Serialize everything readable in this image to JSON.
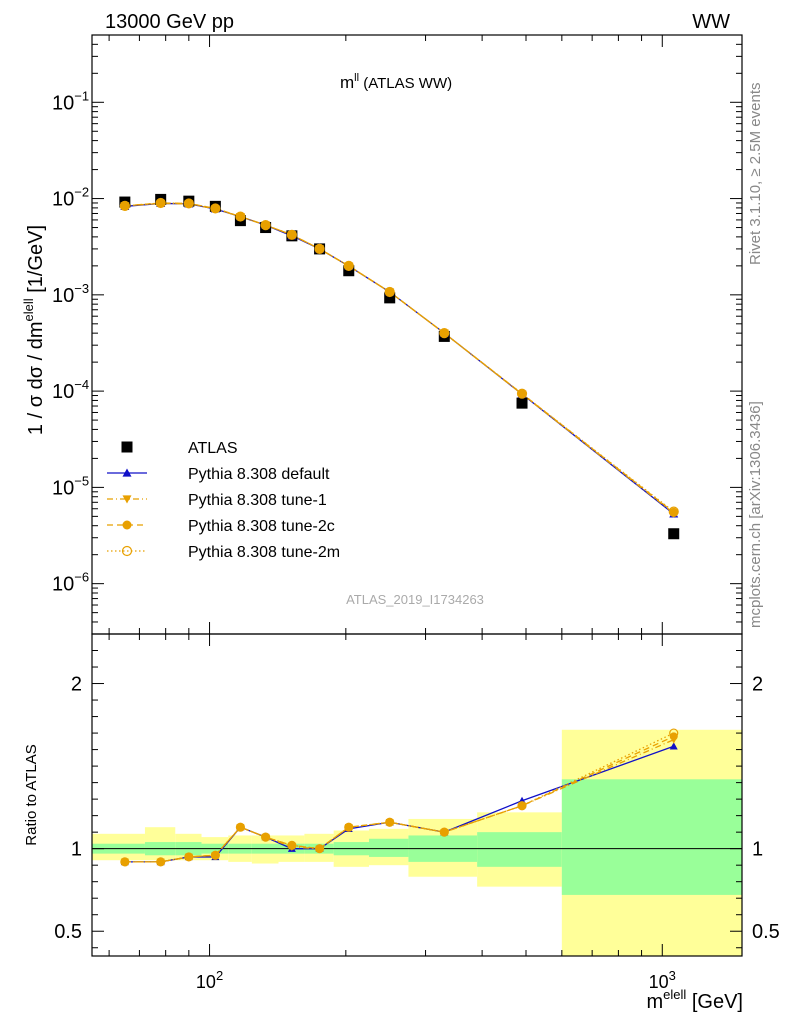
{
  "header": {
    "left": "13000 GeV pp",
    "right": "WW"
  },
  "side_labels": {
    "rivet": "Rivet 3.1.10, ≥ 2.5M events",
    "mcplots": "mcplots.cern.ch [arXiv:1306.3436]"
  },
  "watermark": "ATLAS_2019_I1734263",
  "colors": {
    "data": "#000000",
    "default": "#1010c8",
    "tunes": "#e8a000",
    "band_inner": "#99ff99",
    "band_outer": "#ffff99"
  },
  "chart_data": [
    {
      "type": "line",
      "panel": "main",
      "title": "m^{ll} (ATLAS WW)",
      "title_main": "m",
      "title_sup": "ll",
      "title_rest": " (ATLAS WW)",
      "ylabel": "1 / σ  dσ / dm^{elell} [1/GeV]",
      "ylabel_parts": {
        "pre": "1 / σ  dσ / dm",
        "sup": "elell",
        "post": " [1/GeV]"
      },
      "xscale": "log",
      "yscale": "log",
      "xlim": [
        55,
        1500
      ],
      "ylim": [
        3e-07,
        0.5
      ],
      "yticks": [
        {
          "value": 1e-06,
          "base": "10",
          "exp": "−6"
        },
        {
          "value": 1e-05,
          "base": "10",
          "exp": "−5"
        },
        {
          "value": 0.0001,
          "base": "10",
          "exp": "−4"
        },
        {
          "value": 0.001,
          "base": "10",
          "exp": "−3"
        },
        {
          "value": 0.01,
          "base": "10",
          "exp": "−2"
        },
        {
          "value": 0.1,
          "base": "10",
          "exp": "−1"
        }
      ],
      "legend_position": "bottom-left",
      "x": [
        65,
        78,
        90,
        103,
        117,
        133,
        152,
        175,
        203,
        250,
        330,
        490,
        1060
      ],
      "series": [
        {
          "name": "ATLAS",
          "marker": "square",
          "values": [
            0.0092,
            0.0098,
            0.0094,
            0.0083,
            0.0059,
            0.005,
            0.0041,
            0.003,
            0.00178,
            0.00093,
            0.00037,
            7.5e-05,
            3.3e-06
          ]
        },
        {
          "name": "Pythia 8.308 default",
          "marker": "triangle-up",
          "line": "solid",
          "values": [
            0.0083,
            0.0089,
            0.0088,
            0.0078,
            0.0065,
            0.0053,
            0.0041,
            0.003,
            0.00199,
            0.00107,
            0.0004,
            9.3e-05,
            5.3e-06
          ]
        },
        {
          "name": "Pythia 8.308 tune-1",
          "marker": "triangle-down",
          "line": "dashdot",
          "values": [
            0.0084,
            0.0089,
            0.0088,
            0.0078,
            0.0065,
            0.0053,
            0.0042,
            0.003,
            0.00199,
            0.00107,
            0.0004,
            9.3e-05,
            5.4e-06
          ]
        },
        {
          "name": "Pythia 8.308 tune-2c",
          "marker": "circle",
          "line": "dashed",
          "values": [
            0.0084,
            0.009,
            0.0089,
            0.0079,
            0.0065,
            0.0053,
            0.0042,
            0.003,
            0.002,
            0.00107,
            0.0004,
            9.4e-05,
            5.5e-06
          ]
        },
        {
          "name": "Pythia 8.308 tune-2m",
          "marker": "circle-open",
          "line": "dotted",
          "values": [
            0.0084,
            0.009,
            0.0089,
            0.0079,
            0.0065,
            0.0053,
            0.0042,
            0.003,
            0.002,
            0.00107,
            0.0004,
            9.4e-05,
            5.6e-06
          ]
        }
      ]
    },
    {
      "type": "line",
      "panel": "ratio",
      "ylabel": "Ratio to ATLAS",
      "xlabel": "m^{elell} [GeV]",
      "xlabel_parts": {
        "pre": "m",
        "sup": "elell",
        "post": " [GeV]"
      },
      "xscale": "log",
      "xlim": [
        55,
        1500
      ],
      "ylim": [
        0.35,
        2.3
      ],
      "yticks": [
        0.5,
        1,
        2
      ],
      "xticks": [
        {
          "value": 100,
          "base": "10",
          "exp": "2"
        },
        {
          "value": 1000,
          "base": "10",
          "exp": "3"
        }
      ],
      "bin_edges": [
        55,
        72,
        84,
        96,
        110,
        124,
        142,
        162,
        188,
        225,
        275,
        390,
        600,
        1500
      ],
      "band_inner": [
        [
          0.97,
          1.03
        ],
        [
          0.96,
          1.04
        ],
        [
          0.96,
          1.04
        ],
        [
          0.97,
          1.03
        ],
        [
          0.97,
          1.03
        ],
        [
          0.97,
          1.03
        ],
        [
          0.97,
          1.03
        ],
        [
          0.97,
          1.03
        ],
        [
          0.96,
          1.04
        ],
        [
          0.95,
          1.06
        ],
        [
          0.92,
          1.08
        ],
        [
          0.89,
          1.1
        ],
        [
          0.72,
          1.42
        ]
      ],
      "band_outer": [
        [
          0.93,
          1.09
        ],
        [
          0.93,
          1.13
        ],
        [
          0.93,
          1.09
        ],
        [
          0.93,
          1.07
        ],
        [
          0.92,
          1.08
        ],
        [
          0.91,
          1.08
        ],
        [
          0.92,
          1.08
        ],
        [
          0.92,
          1.09
        ],
        [
          0.89,
          1.11
        ],
        [
          0.9,
          1.12
        ],
        [
          0.83,
          1.18
        ],
        [
          0.77,
          1.22
        ],
        [
          0.35,
          1.72
        ]
      ],
      "x": [
        65,
        78,
        90,
        103,
        117,
        133,
        152,
        175,
        203,
        250,
        330,
        490,
        1060
      ],
      "series": [
        {
          "name": "Pythia 8.308 default",
          "values": [
            0.92,
            0.92,
            0.95,
            0.95,
            1.13,
            1.07,
            1.0,
            1.0,
            1.12,
            1.16,
            1.1,
            1.29,
            1.62
          ]
        },
        {
          "name": "Pythia 8.308 tune-1",
          "values": [
            0.92,
            0.92,
            0.95,
            0.96,
            1.13,
            1.07,
            1.01,
            1.0,
            1.13,
            1.16,
            1.1,
            1.26,
            1.66
          ]
        },
        {
          "name": "Pythia 8.308 tune-2c",
          "values": [
            0.92,
            0.92,
            0.95,
            0.96,
            1.13,
            1.07,
            1.02,
            1.0,
            1.13,
            1.16,
            1.1,
            1.26,
            1.68
          ]
        },
        {
          "name": "Pythia 8.308 tune-2m",
          "values": [
            0.92,
            0.92,
            0.95,
            0.96,
            1.13,
            1.07,
            1.02,
            1.0,
            1.13,
            1.16,
            1.1,
            1.26,
            1.7
          ]
        }
      ]
    }
  ]
}
